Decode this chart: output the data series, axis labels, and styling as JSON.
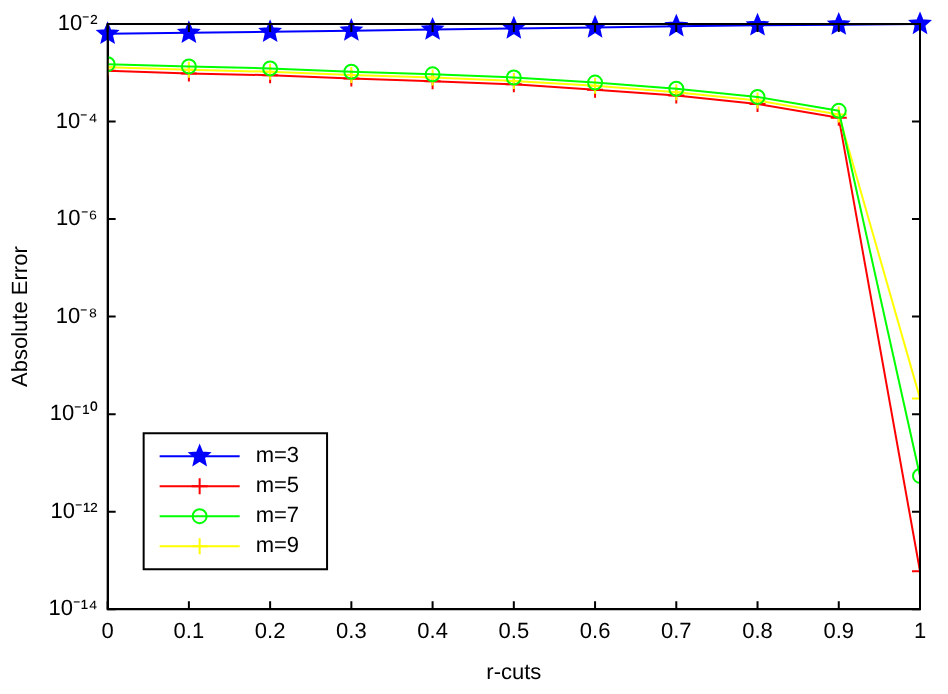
{
  "chart_data": {
    "type": "line",
    "xlabel": "r-cuts",
    "ylabel": "Absolute Error",
    "x": [
      0,
      0.1,
      0.2,
      0.3,
      0.4,
      0.5,
      0.6,
      0.7,
      0.8,
      0.9,
      1
    ],
    "series": [
      {
        "name": "m=3",
        "color": "#0000ff",
        "marker": "star",
        "values": [
          0.0063,
          0.0066,
          0.0069,
          0.0073,
          0.0077,
          0.0081,
          0.0085,
          0.009,
          0.0094,
          0.0097,
          0.01
        ]
      },
      {
        "name": "m=5",
        "color": "#ff0000",
        "marker": "cross",
        "values": [
          0.0011,
          0.00097,
          0.00089,
          0.00076,
          0.00067,
          0.00058,
          0.00045,
          0.00034,
          0.00023,
          0.00012,
          6e-14
        ]
      },
      {
        "name": "m=7",
        "color": "#00ff00",
        "marker": "circle",
        "values": [
          0.0015,
          0.00135,
          0.00123,
          0.00105,
          0.00093,
          0.0008,
          0.00063,
          0.00047,
          0.00032,
          0.000166,
          5.4e-12
        ]
      },
      {
        "name": "m=9",
        "color": "#ffff00",
        "marker": "cross",
        "values": [
          0.0013,
          0.00115,
          0.00105,
          0.0009,
          0.0008,
          0.00068,
          0.00054,
          0.0004,
          0.00027,
          0.00014,
          2.1e-10
        ]
      }
    ],
    "xlim": [
      0,
      1
    ],
    "xticks": [
      0,
      0.1,
      0.2,
      0.3,
      0.4,
      0.5,
      0.6,
      0.7,
      0.8,
      0.9,
      1
    ],
    "ylim": [
      1e-14,
      0.01
    ],
    "yticks": [
      {
        "value": 1e-14,
        "label": "10⁻¹⁴"
      },
      {
        "value": 1e-12,
        "label": "10⁻¹²"
      },
      {
        "value": 1e-10,
        "label": "10⁻¹⁰"
      },
      {
        "value": 1e-08,
        "label": "10⁻⁸"
      },
      {
        "value": 1e-06,
        "label": "10⁻⁶"
      },
      {
        "value": 0.0001,
        "label": "10⁻⁴"
      },
      {
        "value": 0.01,
        "label": "10⁻²"
      }
    ],
    "log": true,
    "grid": false,
    "legend": "bottom left",
    "line_style": "solid"
  }
}
